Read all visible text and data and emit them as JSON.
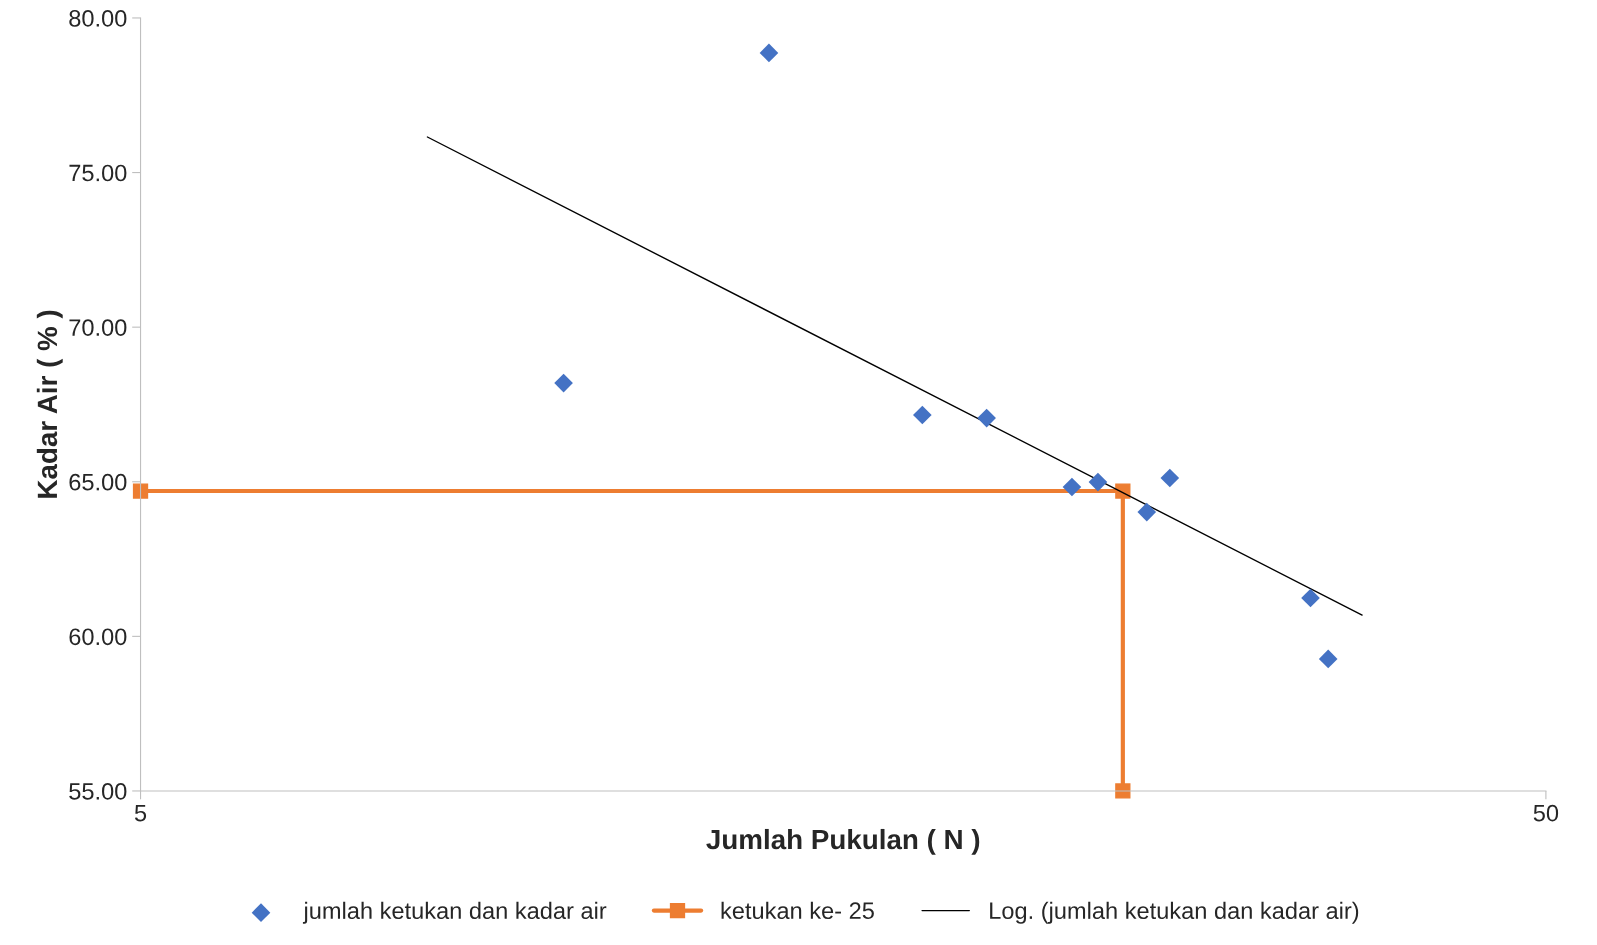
{
  "chart_data": {
    "type": "scatter",
    "xlabel": "Jumlah Pukulan ( N )",
    "ylabel": "Kadar Air ( % )",
    "log": "x",
    "xlim": [
      5,
      50
    ],
    "xticks": [
      5,
      50
    ],
    "ylim": [
      55,
      80
    ],
    "yticks": [
      {
        "value": 55,
        "label": "55.00"
      },
      {
        "value": 60,
        "label": "60.00"
      },
      {
        "value": 65,
        "label": "65.00"
      },
      {
        "value": 70,
        "label": "70.00"
      },
      {
        "value": 75,
        "label": "75.00"
      },
      {
        "value": 80,
        "label": "80.00"
      }
    ],
    "grid": false,
    "legend": "bottom",
    "series": [
      {
        "name": "jumlah ketukan dan kadar air",
        "marker": "diamond",
        "color": "#4472c4",
        "x": [
          10,
          14,
          18,
          20,
          23,
          24,
          26,
          27,
          34,
          35
        ],
        "values": [
          68.19,
          78.87,
          67.16,
          67.06,
          64.83,
          64.99,
          64.02,
          65.12,
          61.24,
          59.27
        ]
      },
      {
        "name": "ketukan ke- 25",
        "type": "line",
        "marker": "square",
        "line_style": "solid",
        "color": "#ed7d31",
        "x": [
          5,
          25,
          25
        ],
        "values": [
          64.7,
          64.7,
          55
        ]
      },
      {
        "name": "Log. (jumlah ketukan dan kadar air)",
        "type": "line",
        "marker": "none",
        "line_style": "solid",
        "color": "#000000",
        "x": [
          8,
          37
        ],
        "values": [
          76.15,
          60.69
        ]
      }
    ]
  }
}
